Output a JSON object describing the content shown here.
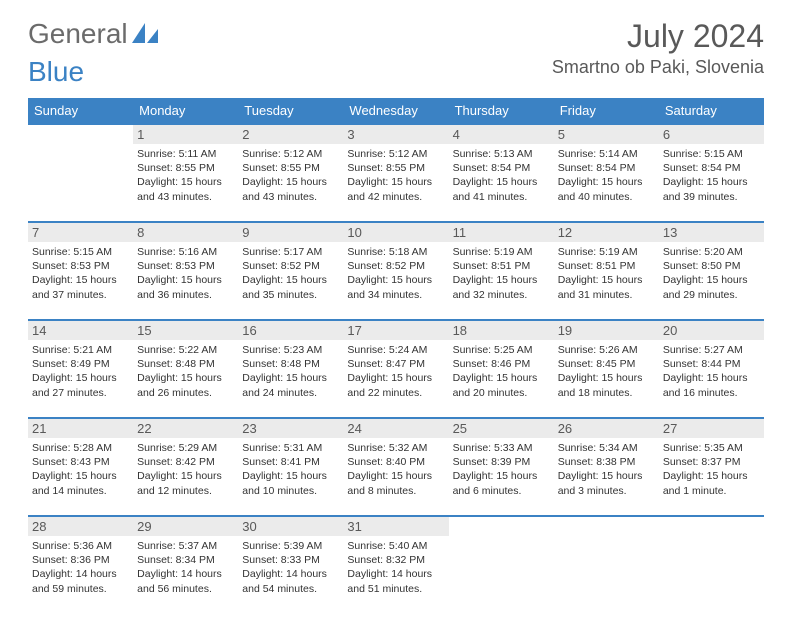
{
  "logo": {
    "text1": "General",
    "text2": "Blue"
  },
  "title": "July 2024",
  "location": "Smartno ob Paki, Slovenia",
  "colors": {
    "header_bg": "#3b82c4",
    "header_text": "#ffffff",
    "daynum_bg": "#ebebeb",
    "rule": "#3b82c4",
    "text": "#333333",
    "muted": "#595959"
  },
  "weekdays": [
    "Sunday",
    "Monday",
    "Tuesday",
    "Wednesday",
    "Thursday",
    "Friday",
    "Saturday"
  ],
  "weeks": [
    [
      null,
      {
        "n": "1",
        "sr": "Sunrise: 5:11 AM",
        "ss": "Sunset: 8:55 PM",
        "d1": "Daylight: 15 hours",
        "d2": "and 43 minutes."
      },
      {
        "n": "2",
        "sr": "Sunrise: 5:12 AM",
        "ss": "Sunset: 8:55 PM",
        "d1": "Daylight: 15 hours",
        "d2": "and 43 minutes."
      },
      {
        "n": "3",
        "sr": "Sunrise: 5:12 AM",
        "ss": "Sunset: 8:55 PM",
        "d1": "Daylight: 15 hours",
        "d2": "and 42 minutes."
      },
      {
        "n": "4",
        "sr": "Sunrise: 5:13 AM",
        "ss": "Sunset: 8:54 PM",
        "d1": "Daylight: 15 hours",
        "d2": "and 41 minutes."
      },
      {
        "n": "5",
        "sr": "Sunrise: 5:14 AM",
        "ss": "Sunset: 8:54 PM",
        "d1": "Daylight: 15 hours",
        "d2": "and 40 minutes."
      },
      {
        "n": "6",
        "sr": "Sunrise: 5:15 AM",
        "ss": "Sunset: 8:54 PM",
        "d1": "Daylight: 15 hours",
        "d2": "and 39 minutes."
      }
    ],
    [
      {
        "n": "7",
        "sr": "Sunrise: 5:15 AM",
        "ss": "Sunset: 8:53 PM",
        "d1": "Daylight: 15 hours",
        "d2": "and 37 minutes."
      },
      {
        "n": "8",
        "sr": "Sunrise: 5:16 AM",
        "ss": "Sunset: 8:53 PM",
        "d1": "Daylight: 15 hours",
        "d2": "and 36 minutes."
      },
      {
        "n": "9",
        "sr": "Sunrise: 5:17 AM",
        "ss": "Sunset: 8:52 PM",
        "d1": "Daylight: 15 hours",
        "d2": "and 35 minutes."
      },
      {
        "n": "10",
        "sr": "Sunrise: 5:18 AM",
        "ss": "Sunset: 8:52 PM",
        "d1": "Daylight: 15 hours",
        "d2": "and 34 minutes."
      },
      {
        "n": "11",
        "sr": "Sunrise: 5:19 AM",
        "ss": "Sunset: 8:51 PM",
        "d1": "Daylight: 15 hours",
        "d2": "and 32 minutes."
      },
      {
        "n": "12",
        "sr": "Sunrise: 5:19 AM",
        "ss": "Sunset: 8:51 PM",
        "d1": "Daylight: 15 hours",
        "d2": "and 31 minutes."
      },
      {
        "n": "13",
        "sr": "Sunrise: 5:20 AM",
        "ss": "Sunset: 8:50 PM",
        "d1": "Daylight: 15 hours",
        "d2": "and 29 minutes."
      }
    ],
    [
      {
        "n": "14",
        "sr": "Sunrise: 5:21 AM",
        "ss": "Sunset: 8:49 PM",
        "d1": "Daylight: 15 hours",
        "d2": "and 27 minutes."
      },
      {
        "n": "15",
        "sr": "Sunrise: 5:22 AM",
        "ss": "Sunset: 8:48 PM",
        "d1": "Daylight: 15 hours",
        "d2": "and 26 minutes."
      },
      {
        "n": "16",
        "sr": "Sunrise: 5:23 AM",
        "ss": "Sunset: 8:48 PM",
        "d1": "Daylight: 15 hours",
        "d2": "and 24 minutes."
      },
      {
        "n": "17",
        "sr": "Sunrise: 5:24 AM",
        "ss": "Sunset: 8:47 PM",
        "d1": "Daylight: 15 hours",
        "d2": "and 22 minutes."
      },
      {
        "n": "18",
        "sr": "Sunrise: 5:25 AM",
        "ss": "Sunset: 8:46 PM",
        "d1": "Daylight: 15 hours",
        "d2": "and 20 minutes."
      },
      {
        "n": "19",
        "sr": "Sunrise: 5:26 AM",
        "ss": "Sunset: 8:45 PM",
        "d1": "Daylight: 15 hours",
        "d2": "and 18 minutes."
      },
      {
        "n": "20",
        "sr": "Sunrise: 5:27 AM",
        "ss": "Sunset: 8:44 PM",
        "d1": "Daylight: 15 hours",
        "d2": "and 16 minutes."
      }
    ],
    [
      {
        "n": "21",
        "sr": "Sunrise: 5:28 AM",
        "ss": "Sunset: 8:43 PM",
        "d1": "Daylight: 15 hours",
        "d2": "and 14 minutes."
      },
      {
        "n": "22",
        "sr": "Sunrise: 5:29 AM",
        "ss": "Sunset: 8:42 PM",
        "d1": "Daylight: 15 hours",
        "d2": "and 12 minutes."
      },
      {
        "n": "23",
        "sr": "Sunrise: 5:31 AM",
        "ss": "Sunset: 8:41 PM",
        "d1": "Daylight: 15 hours",
        "d2": "and 10 minutes."
      },
      {
        "n": "24",
        "sr": "Sunrise: 5:32 AM",
        "ss": "Sunset: 8:40 PM",
        "d1": "Daylight: 15 hours",
        "d2": "and 8 minutes."
      },
      {
        "n": "25",
        "sr": "Sunrise: 5:33 AM",
        "ss": "Sunset: 8:39 PM",
        "d1": "Daylight: 15 hours",
        "d2": "and 6 minutes."
      },
      {
        "n": "26",
        "sr": "Sunrise: 5:34 AM",
        "ss": "Sunset: 8:38 PM",
        "d1": "Daylight: 15 hours",
        "d2": "and 3 minutes."
      },
      {
        "n": "27",
        "sr": "Sunrise: 5:35 AM",
        "ss": "Sunset: 8:37 PM",
        "d1": "Daylight: 15 hours",
        "d2": "and 1 minute."
      }
    ],
    [
      {
        "n": "28",
        "sr": "Sunrise: 5:36 AM",
        "ss": "Sunset: 8:36 PM",
        "d1": "Daylight: 14 hours",
        "d2": "and 59 minutes."
      },
      {
        "n": "29",
        "sr": "Sunrise: 5:37 AM",
        "ss": "Sunset: 8:34 PM",
        "d1": "Daylight: 14 hours",
        "d2": "and 56 minutes."
      },
      {
        "n": "30",
        "sr": "Sunrise: 5:39 AM",
        "ss": "Sunset: 8:33 PM",
        "d1": "Daylight: 14 hours",
        "d2": "and 54 minutes."
      },
      {
        "n": "31",
        "sr": "Sunrise: 5:40 AM",
        "ss": "Sunset: 8:32 PM",
        "d1": "Daylight: 14 hours",
        "d2": "and 51 minutes."
      },
      null,
      null,
      null
    ]
  ]
}
